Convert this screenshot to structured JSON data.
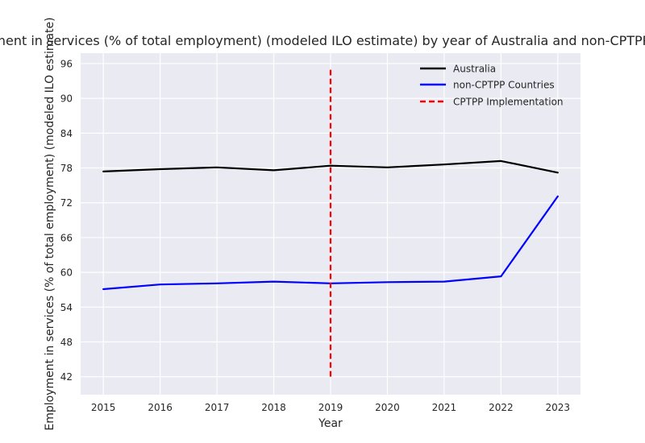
{
  "chart_data": {
    "type": "line",
    "title": "Employment in services (% of total employment) (modeled ILO estimate) by year of Australia and non-CPTPP Countries",
    "xlabel": "Year",
    "ylabel": "Employment in services (% of total employment) (modeled ILO estimate)",
    "x": [
      2015,
      2016,
      2017,
      2018,
      2019,
      2020,
      2021,
      2022,
      2023
    ],
    "xlim": [
      2014.6,
      2023.4
    ],
    "ylim": [
      38.9,
      97.8
    ],
    "yticks": [
      42,
      48,
      54,
      60,
      66,
      72,
      78,
      84,
      90,
      96
    ],
    "grid": true,
    "legend_position": "top-right",
    "series": [
      {
        "name": "Australia",
        "color": "#000000",
        "style": "solid",
        "values": [
          77.4,
          77.8,
          78.1,
          77.6,
          78.4,
          78.1,
          78.6,
          79.2,
          77.2
        ]
      },
      {
        "name": "non-CPTPP Countries",
        "color": "#0000ff",
        "style": "solid",
        "values": [
          57.1,
          57.9,
          58.1,
          58.4,
          58.1,
          58.3,
          58.4,
          59.3,
          73.1
        ]
      }
    ],
    "vline": {
      "name": "CPTPP Implementation",
      "x": 2019,
      "y_range": [
        42,
        95
      ],
      "color": "#ff0000",
      "style": "dashed"
    }
  }
}
